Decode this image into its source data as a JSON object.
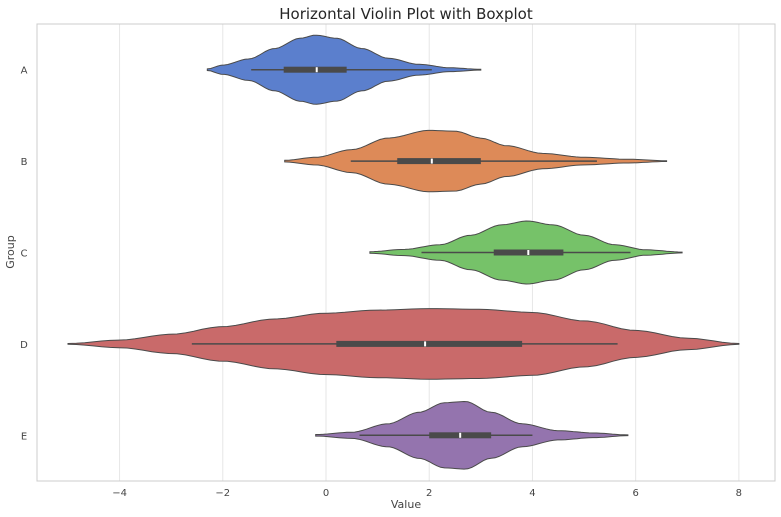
{
  "chart_data": {
    "type": "violin",
    "orientation": "horizontal",
    "title": "Horizontal Violin Plot with Boxplot",
    "xlabel": "Value",
    "ylabel": "Group",
    "xlim": [
      -5.6,
      8.7
    ],
    "xticks": [
      -4,
      -2,
      0,
      2,
      4,
      6,
      8
    ],
    "xtick_labels": [
      "−4",
      "−2",
      "0",
      "2",
      "4",
      "6",
      "8"
    ],
    "grid": "vertical",
    "groups": [
      {
        "name": "A",
        "color": "#5b7fcd",
        "range": [
          -2.3,
          3.0
        ],
        "whiskers": [
          -1.45,
          2.05
        ],
        "q1": -0.82,
        "median": -0.18,
        "q3": 0.4,
        "density": [
          [
            -2.3,
            0.02
          ],
          [
            -2.0,
            0.12
          ],
          [
            -1.5,
            0.28
          ],
          [
            -1.0,
            0.55
          ],
          [
            -0.5,
            0.82
          ],
          [
            -0.2,
            0.9
          ],
          [
            0.2,
            0.82
          ],
          [
            0.7,
            0.55
          ],
          [
            1.2,
            0.3
          ],
          [
            1.8,
            0.14
          ],
          [
            2.4,
            0.05
          ],
          [
            3.0,
            0.01
          ]
        ]
      },
      {
        "name": "B",
        "color": "#dd8a58",
        "range": [
          -0.8,
          6.6
        ],
        "whiskers": [
          0.48,
          5.25
        ],
        "q1": 1.38,
        "median": 2.05,
        "q3": 3.0,
        "density": [
          [
            -0.8,
            0.02
          ],
          [
            -0.2,
            0.1
          ],
          [
            0.5,
            0.3
          ],
          [
            1.2,
            0.6
          ],
          [
            2.0,
            0.8
          ],
          [
            2.5,
            0.78
          ],
          [
            3.0,
            0.6
          ],
          [
            3.5,
            0.4
          ],
          [
            4.2,
            0.2
          ],
          [
            5.0,
            0.1
          ],
          [
            5.8,
            0.05
          ],
          [
            6.6,
            0.01
          ]
        ]
      },
      {
        "name": "C",
        "color": "#76c269",
        "range": [
          0.85,
          6.9
        ],
        "whiskers": [
          1.85,
          5.9
        ],
        "q1": 3.25,
        "median": 3.92,
        "q3": 4.6,
        "density": [
          [
            0.85,
            0.02
          ],
          [
            1.5,
            0.08
          ],
          [
            2.2,
            0.2
          ],
          [
            2.8,
            0.45
          ],
          [
            3.4,
            0.72
          ],
          [
            3.9,
            0.82
          ],
          [
            4.4,
            0.72
          ],
          [
            5.0,
            0.45
          ],
          [
            5.6,
            0.2
          ],
          [
            6.2,
            0.07
          ],
          [
            6.9,
            0.01
          ]
        ]
      },
      {
        "name": "D",
        "color": "#c96a6a",
        "range": [
          -5.0,
          8.0
        ],
        "whiskers": [
          -2.6,
          5.65
        ],
        "q1": 0.2,
        "median": 1.92,
        "q3": 3.8,
        "density": [
          [
            -5.0,
            0.01
          ],
          [
            -4.0,
            0.1
          ],
          [
            -3.0,
            0.25
          ],
          [
            -2.0,
            0.45
          ],
          [
            -1.0,
            0.65
          ],
          [
            0.0,
            0.8
          ],
          [
            1.0,
            0.88
          ],
          [
            2.0,
            0.92
          ],
          [
            3.0,
            0.9
          ],
          [
            4.0,
            0.82
          ],
          [
            5.0,
            0.6
          ],
          [
            6.0,
            0.35
          ],
          [
            7.0,
            0.15
          ],
          [
            8.0,
            0.01
          ]
        ]
      },
      {
        "name": "E",
        "color": "#9474ae",
        "range": [
          -0.2,
          5.85
        ],
        "whiskers": [
          0.65,
          4.0
        ],
        "q1": 2.0,
        "median": 2.6,
        "q3": 3.2,
        "density": [
          [
            -0.2,
            0.02
          ],
          [
            0.5,
            0.08
          ],
          [
            1.2,
            0.3
          ],
          [
            1.8,
            0.6
          ],
          [
            2.3,
            0.85
          ],
          [
            2.7,
            0.88
          ],
          [
            3.2,
            0.6
          ],
          [
            3.8,
            0.3
          ],
          [
            4.5,
            0.12
          ],
          [
            5.2,
            0.06
          ],
          [
            5.85,
            0.01
          ]
        ]
      }
    ]
  }
}
